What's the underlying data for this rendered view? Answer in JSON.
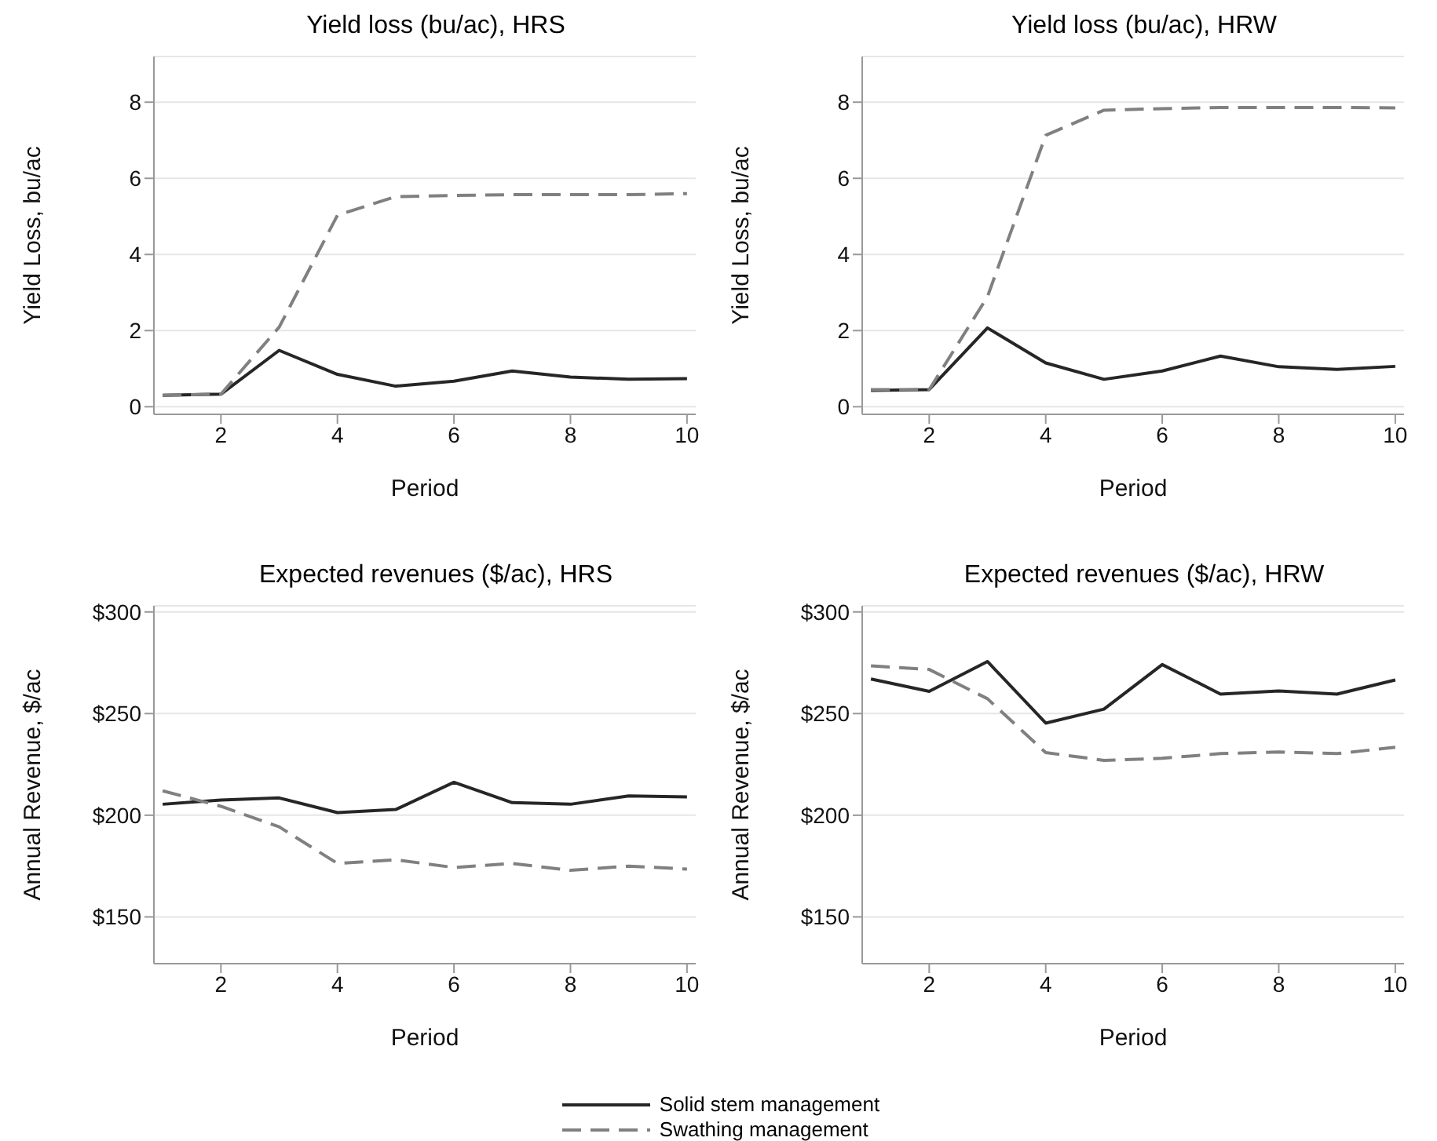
{
  "chart_data": [
    {
      "type": "line",
      "title": "Yield loss (bu/ac), HRS",
      "xlabel": "Period",
      "ylabel": "Yield Loss, bu/ac",
      "x": [
        1,
        2,
        3,
        4,
        5,
        6,
        7,
        8,
        9,
        10
      ],
      "xlim": [
        0.85,
        10.15
      ],
      "xticks": [
        2,
        4,
        6,
        8,
        10
      ],
      "ylim": [
        -0.2,
        9.2
      ],
      "yticks": [
        0,
        2,
        4,
        6,
        8
      ],
      "grid": "y",
      "legend": "bottom",
      "marker": "none",
      "series": [
        {
          "name": "Solid stem management",
          "color": "#262626",
          "line_style": "solid",
          "values": [
            0.3,
            0.33,
            1.48,
            0.85,
            0.54,
            0.67,
            0.94,
            0.78,
            0.72,
            0.74
          ]
        },
        {
          "name": "Swathing management",
          "color": "#808080",
          "line_style": "dashed",
          "values": [
            0.3,
            0.33,
            2.09,
            5.03,
            5.52,
            5.55,
            5.57,
            5.57,
            5.57,
            5.6
          ]
        }
      ]
    },
    {
      "type": "line",
      "title": "Yield loss (bu/ac), HRW",
      "xlabel": "Period",
      "ylabel": "Yield Loss, bu/ac",
      "x": [
        1,
        2,
        3,
        4,
        5,
        6,
        7,
        8,
        9,
        10
      ],
      "xlim": [
        0.85,
        10.15
      ],
      "xticks": [
        2,
        4,
        6,
        8,
        10
      ],
      "ylim": [
        -0.2,
        9.2
      ],
      "yticks": [
        0,
        2,
        4,
        6,
        8
      ],
      "grid": "y",
      "marker": "none",
      "series": [
        {
          "color": "#262626",
          "line_style": "solid",
          "values": [
            0.43,
            0.45,
            2.07,
            1.15,
            0.72,
            0.94,
            1.33,
            1.05,
            0.98,
            1.06
          ]
        },
        {
          "color": "#808080",
          "line_style": "dashed",
          "values": [
            0.45,
            0.45,
            2.89,
            7.13,
            7.79,
            7.83,
            7.86,
            7.86,
            7.86,
            7.85
          ]
        }
      ]
    },
    {
      "type": "line",
      "title": "Expected revenues ($/ac), HRS",
      "xlabel": "Period",
      "ylabel": "Annual Revenue, $/ac",
      "x": [
        1,
        2,
        3,
        4,
        5,
        6,
        7,
        8,
        9,
        10
      ],
      "xlim": [
        0.85,
        10.15
      ],
      "xticks": [
        2,
        4,
        6,
        8,
        10
      ],
      "ylim": [
        127,
        303
      ],
      "yticks": [
        {
          "value": 150,
          "label": "$150"
        },
        {
          "value": 200,
          "label": "$200"
        },
        {
          "value": 250,
          "label": "$250"
        },
        {
          "value": 300,
          "label": "$300"
        }
      ],
      "grid": "y",
      "marker": "none",
      "series": [
        {
          "color": "#262626",
          "line_style": "solid",
          "values": [
            205.4,
            207.5,
            208.5,
            201.3,
            202.8,
            216.2,
            206.2,
            205.4,
            209.5,
            209
          ]
        },
        {
          "color": "#808080",
          "line_style": "dashed",
          "values": [
            212,
            204.4,
            194.3,
            176.3,
            178.1,
            174.3,
            176.3,
            172.9,
            175,
            173.5
          ]
        }
      ]
    },
    {
      "type": "line",
      "title": "Expected revenues ($/ac), HRW",
      "xlabel": "Period",
      "ylabel": "Annual Revenue, $/ac",
      "x": [
        1,
        2,
        3,
        4,
        5,
        6,
        7,
        8,
        9,
        10
      ],
      "xlim": [
        0.85,
        10.15
      ],
      "xticks": [
        2,
        4,
        6,
        8,
        10
      ],
      "ylim": [
        127,
        303
      ],
      "yticks": [
        {
          "value": 150,
          "label": "$150"
        },
        {
          "value": 200,
          "label": "$200"
        },
        {
          "value": 250,
          "label": "$250"
        },
        {
          "value": 300,
          "label": "$300"
        }
      ],
      "grid": "y",
      "marker": "none",
      "series": [
        {
          "color": "#262626",
          "line_style": "solid",
          "values": [
            267,
            260.9,
            275.6,
            245.3,
            252.2,
            274.1,
            259.6,
            261.1,
            259.6,
            266.5
          ]
        },
        {
          "color": "#808080",
          "line_style": "dashed",
          "values": [
            273.5,
            271.7,
            257.3,
            230.8,
            227,
            228,
            230.3,
            231.1,
            230.3,
            233.4
          ]
        }
      ]
    }
  ]
}
